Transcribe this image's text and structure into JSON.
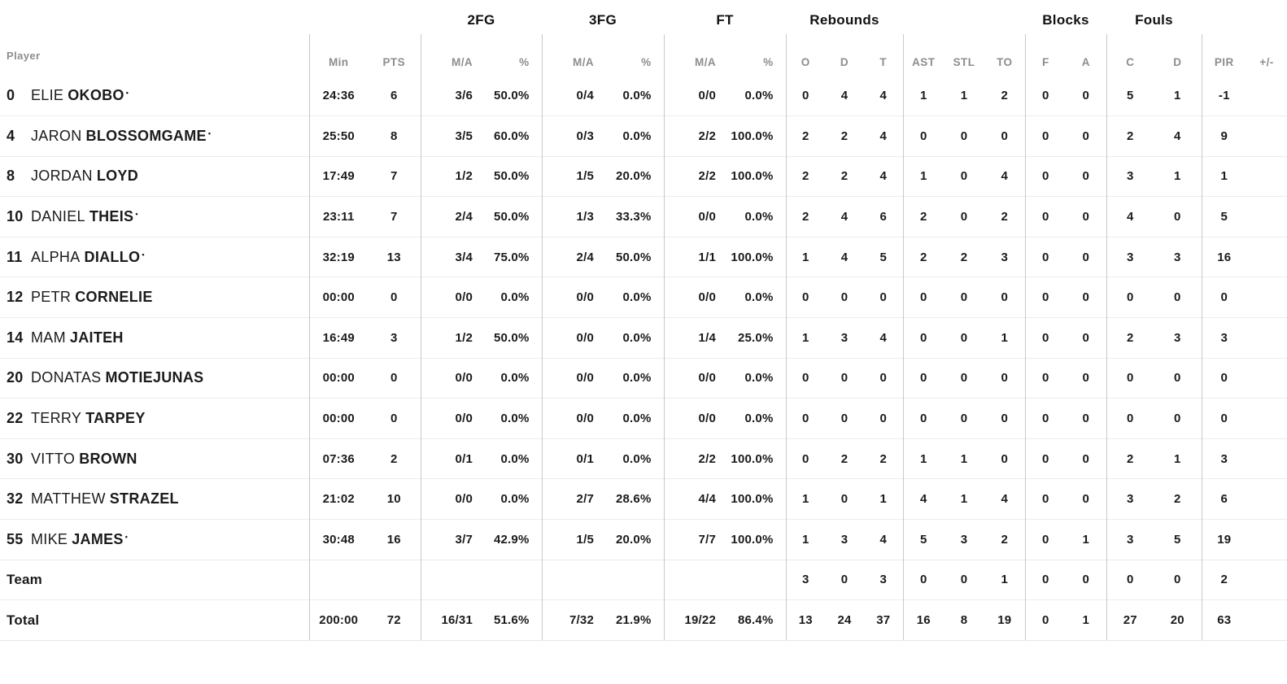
{
  "table": {
    "player_header": "Player",
    "groups": {
      "fg2": "2FG",
      "fg3": "3FG",
      "ft": "FT",
      "rebounds": "Rebounds",
      "blocks": "Blocks",
      "fouls": "Fouls"
    },
    "sub_headers": [
      "Min",
      "PTS",
      "M/A",
      "%",
      "M/A",
      "%",
      "M/A",
      "%",
      "O",
      "D",
      "T",
      "AST",
      "STL",
      "TO",
      "F",
      "A",
      "C",
      "D",
      "PIR",
      "+/-"
    ],
    "starter_marker": "•",
    "rows": [
      {
        "num": "0",
        "first": "ELIE",
        "last": "OKOBO",
        "starter": true,
        "stats": [
          "24:36",
          "6",
          "3/6",
          "50.0%",
          "0/4",
          "0.0%",
          "0/0",
          "0.0%",
          "0",
          "4",
          "4",
          "1",
          "1",
          "2",
          "0",
          "0",
          "5",
          "1",
          "-1",
          ""
        ]
      },
      {
        "num": "4",
        "first": "JARON",
        "last": "BLOSSOMGAME",
        "starter": true,
        "stats": [
          "25:50",
          "8",
          "3/5",
          "60.0%",
          "0/3",
          "0.0%",
          "2/2",
          "100.0%",
          "2",
          "2",
          "4",
          "0",
          "0",
          "0",
          "0",
          "0",
          "2",
          "4",
          "9",
          ""
        ]
      },
      {
        "num": "8",
        "first": "JORDAN",
        "last": "LOYD",
        "starter": false,
        "stats": [
          "17:49",
          "7",
          "1/2",
          "50.0%",
          "1/5",
          "20.0%",
          "2/2",
          "100.0%",
          "2",
          "2",
          "4",
          "1",
          "0",
          "4",
          "0",
          "0",
          "3",
          "1",
          "1",
          ""
        ]
      },
      {
        "num": "10",
        "first": "DANIEL",
        "last": "THEIS",
        "starter": true,
        "stats": [
          "23:11",
          "7",
          "2/4",
          "50.0%",
          "1/3",
          "33.3%",
          "0/0",
          "0.0%",
          "2",
          "4",
          "6",
          "2",
          "0",
          "2",
          "0",
          "0",
          "4",
          "0",
          "5",
          ""
        ]
      },
      {
        "num": "11",
        "first": "ALPHA",
        "last": "DIALLO",
        "starter": true,
        "stats": [
          "32:19",
          "13",
          "3/4",
          "75.0%",
          "2/4",
          "50.0%",
          "1/1",
          "100.0%",
          "1",
          "4",
          "5",
          "2",
          "2",
          "3",
          "0",
          "0",
          "3",
          "3",
          "16",
          ""
        ]
      },
      {
        "num": "12",
        "first": "PETR",
        "last": "CORNELIE",
        "starter": false,
        "stats": [
          "00:00",
          "0",
          "0/0",
          "0.0%",
          "0/0",
          "0.0%",
          "0/0",
          "0.0%",
          "0",
          "0",
          "0",
          "0",
          "0",
          "0",
          "0",
          "0",
          "0",
          "0",
          "0",
          ""
        ]
      },
      {
        "num": "14",
        "first": "MAM",
        "last": "JAITEH",
        "starter": false,
        "stats": [
          "16:49",
          "3",
          "1/2",
          "50.0%",
          "0/0",
          "0.0%",
          "1/4",
          "25.0%",
          "1",
          "3",
          "4",
          "0",
          "0",
          "1",
          "0",
          "0",
          "2",
          "3",
          "3",
          ""
        ]
      },
      {
        "num": "20",
        "first": "DONATAS",
        "last": "MOTIEJUNAS",
        "starter": false,
        "stats": [
          "00:00",
          "0",
          "0/0",
          "0.0%",
          "0/0",
          "0.0%",
          "0/0",
          "0.0%",
          "0",
          "0",
          "0",
          "0",
          "0",
          "0",
          "0",
          "0",
          "0",
          "0",
          "0",
          ""
        ]
      },
      {
        "num": "22",
        "first": "TERRY",
        "last": "TARPEY",
        "starter": false,
        "stats": [
          "00:00",
          "0",
          "0/0",
          "0.0%",
          "0/0",
          "0.0%",
          "0/0",
          "0.0%",
          "0",
          "0",
          "0",
          "0",
          "0",
          "0",
          "0",
          "0",
          "0",
          "0",
          "0",
          ""
        ]
      },
      {
        "num": "30",
        "first": "VITTO",
        "last": "BROWN",
        "starter": false,
        "stats": [
          "07:36",
          "2",
          "0/1",
          "0.0%",
          "0/1",
          "0.0%",
          "2/2",
          "100.0%",
          "0",
          "2",
          "2",
          "1",
          "1",
          "0",
          "0",
          "0",
          "2",
          "1",
          "3",
          ""
        ]
      },
      {
        "num": "32",
        "first": "MATTHEW",
        "last": "STRAZEL",
        "starter": false,
        "stats": [
          "21:02",
          "10",
          "0/0",
          "0.0%",
          "2/7",
          "28.6%",
          "4/4",
          "100.0%",
          "1",
          "0",
          "1",
          "4",
          "1",
          "4",
          "0",
          "0",
          "3",
          "2",
          "6",
          ""
        ]
      },
      {
        "num": "55",
        "first": "MIKE",
        "last": "JAMES",
        "starter": true,
        "stats": [
          "30:48",
          "16",
          "3/7",
          "42.9%",
          "1/5",
          "20.0%",
          "7/7",
          "100.0%",
          "1",
          "3",
          "4",
          "5",
          "3",
          "2",
          "0",
          "1",
          "3",
          "5",
          "19",
          ""
        ]
      },
      {
        "label": "Team",
        "stats": [
          "",
          "",
          "",
          "",
          "",
          "",
          "",
          "",
          "3",
          "0",
          "3",
          "0",
          "0",
          "1",
          "0",
          "0",
          "0",
          "0",
          "2",
          ""
        ]
      },
      {
        "label": "Total",
        "stats": [
          "200:00",
          "72",
          "16/31",
          "51.6%",
          "7/32",
          "21.9%",
          "19/22",
          "86.4%",
          "13",
          "24",
          "37",
          "16",
          "8",
          "19",
          "0",
          "1",
          "27",
          "20",
          "63",
          ""
        ]
      }
    ],
    "colors": {
      "text": "#1b1b1b",
      "muted_header": "#8d8d8d",
      "column_divider": "#c9c9c9",
      "row_separator": "#ececec",
      "background": "#ffffff"
    }
  }
}
